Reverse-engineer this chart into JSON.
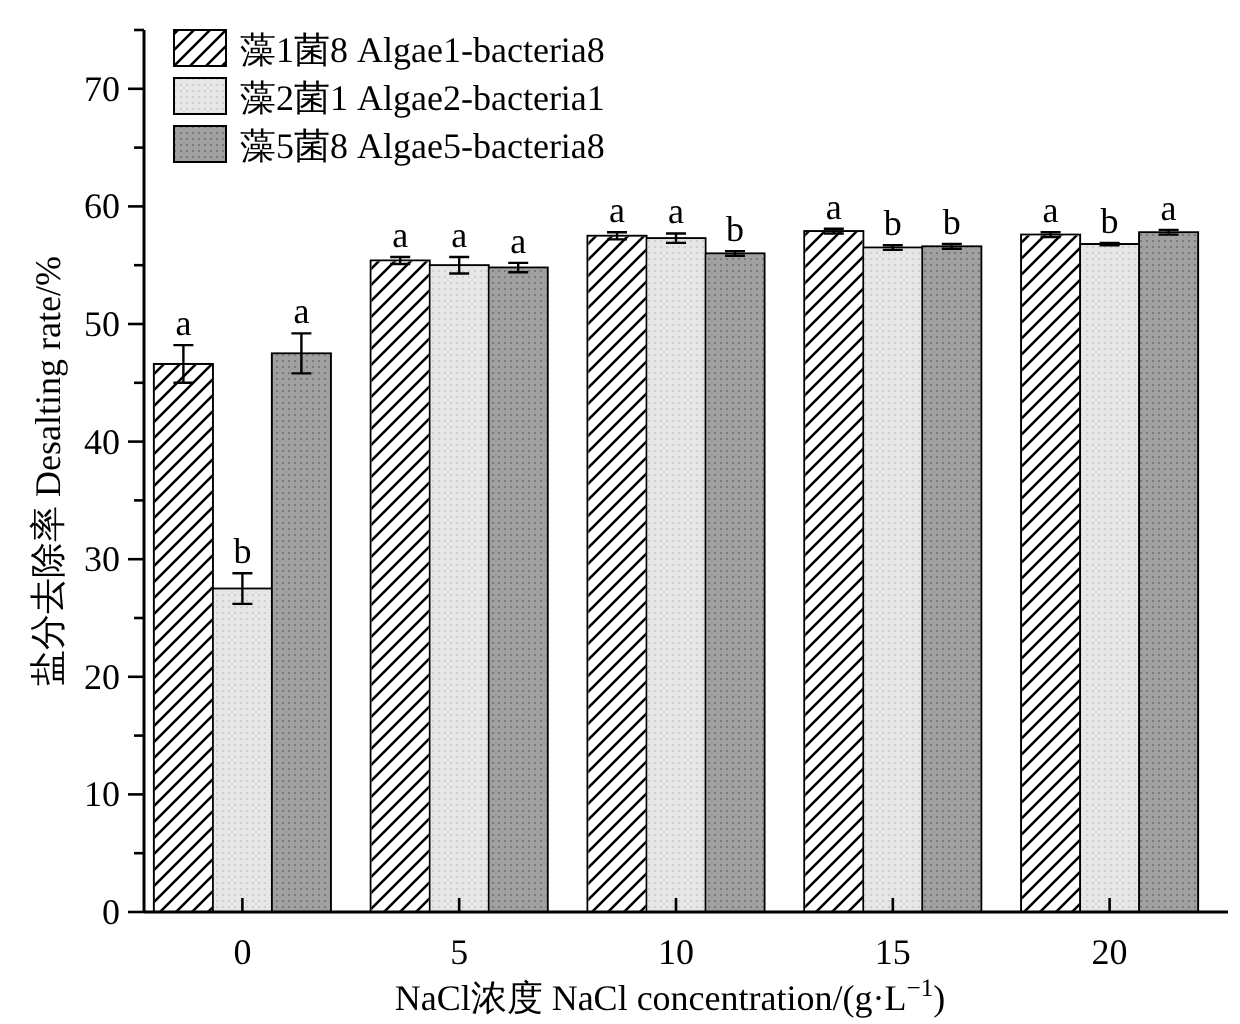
{
  "chart_data": {
    "type": "bar",
    "xlabel": "NaCl浓度 NaCl concentration/(g·L$^{−1}$)",
    "ylabel": "盐分去除率 Desalting rate/%",
    "categories": [
      "0",
      "5",
      "10",
      "15",
      "20"
    ],
    "series": [
      {
        "name": "藻1菌8 Algae1-bacteria8",
        "color": "#ffffff",
        "values": [
          46.6,
          55.4,
          57.5,
          57.9,
          57.6
        ],
        "errors": [
          1.6,
          0.3,
          0.3,
          0.2,
          0.2
        ],
        "value_labels": [
          "a",
          "a",
          "a",
          "a",
          "a"
        ]
      },
      {
        "name": "藻2菌1 Algae2-bacteria1",
        "color": "#e6e6e6",
        "values": [
          27.5,
          55.0,
          57.3,
          56.5,
          56.8
        ],
        "errors": [
          1.3,
          0.7,
          0.4,
          0.2,
          0.1
        ],
        "value_labels": [
          "b",
          "a",
          "a",
          "b",
          "b"
        ]
      },
      {
        "name": "藻5菌8 Algae5-bacteria8",
        "color": "#a0a0a0",
        "values": [
          47.5,
          54.8,
          56.0,
          56.6,
          57.8
        ],
        "errors": [
          1.7,
          0.4,
          0.2,
          0.2,
          0.2
        ],
        "value_labels": [
          "a",
          "a",
          "b",
          "b",
          "a"
        ]
      }
    ],
    "ylim": [
      0,
      75
    ],
    "yticks": [
      0,
      {
        "value": 5,
        "label": null
      },
      10,
      {
        "value": 15,
        "label": null
      },
      20,
      {
        "value": 25,
        "label": null
      },
      30,
      {
        "value": 35,
        "label": null
      },
      40,
      {
        "value": 45,
        "label": null
      },
      50,
      {
        "value": 55,
        "label": null
      },
      60,
      {
        "value": 65,
        "label": null
      },
      70,
      {
        "value": 75,
        "label": null
      }
    ],
    "grid": false,
    "legend": "top left"
  }
}
